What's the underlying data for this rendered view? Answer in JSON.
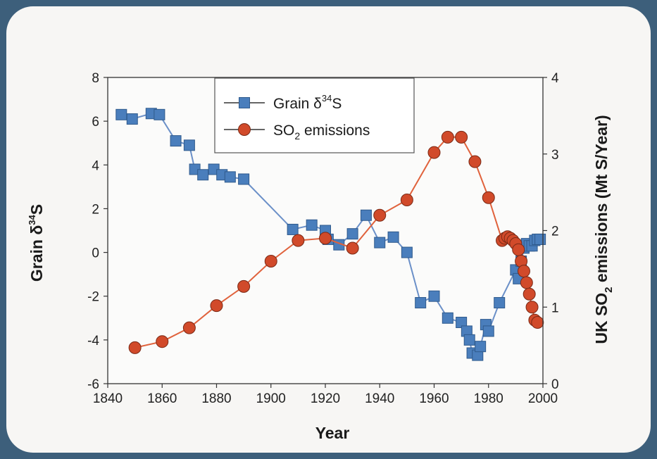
{
  "chart_data": {
    "type": "line",
    "xlabel": "Year",
    "ylabel_left": {
      "text": "Grain δ",
      "sup": "34",
      "tail": "S"
    },
    "ylabel_right": {
      "text": "UK SO",
      "sub": "2",
      "tail": " emissions (Mt S/Year)"
    },
    "xlim": [
      1840,
      2000
    ],
    "ylim_left": [
      -6,
      8
    ],
    "ylim_right": [
      0,
      4
    ],
    "x_ticks": [
      1840,
      1860,
      1880,
      1900,
      1920,
      1940,
      1960,
      1980,
      2000
    ],
    "y_left_ticks": [
      -6,
      -4,
      -2,
      0,
      2,
      4,
      6,
      8
    ],
    "y_right_ticks": [
      0,
      1,
      2,
      3,
      4
    ],
    "legend_position": "top-center",
    "series": [
      {
        "name": "Grain δ34S",
        "legend_label": {
          "text": "Grain δ",
          "sup": "34",
          "tail": "S"
        },
        "axis": "left",
        "marker": "square",
        "color": "#4a7ebc",
        "line_color": "#6b90c8",
        "x": [
          1845,
          1849,
          1856,
          1859,
          1865,
          1870,
          1872,
          1875,
          1879,
          1882,
          1885,
          1890,
          1908,
          1915,
          1920,
          1921,
          1925,
          1930,
          1935,
          1940,
          1945,
          1950,
          1955,
          1960,
          1965,
          1970,
          1972,
          1973,
          1974,
          1976,
          1977,
          1979,
          1980,
          1984,
          1990,
          1991,
          1992,
          1993,
          1994,
          1995,
          1996,
          1997,
          1998,
          1999
        ],
        "y": [
          6.3,
          6.1,
          6.35,
          6.3,
          5.1,
          4.9,
          3.8,
          3.55,
          3.8,
          3.55,
          3.45,
          3.35,
          1.05,
          1.25,
          1.0,
          0.6,
          0.35,
          0.85,
          1.7,
          0.45,
          0.7,
          0.0,
          -2.3,
          -2.0,
          -3.0,
          -3.2,
          -3.6,
          -4.0,
          -4.6,
          -4.7,
          -4.3,
          -3.3,
          -3.6,
          -2.3,
          -0.8,
          -1.2,
          -0.4,
          0.2,
          0.4,
          0.3,
          0.3,
          0.55,
          0.6,
          0.6
        ]
      },
      {
        "name": "SO2 emissions",
        "legend_label": {
          "text": "SO",
          "sub": "2",
          "tail": " emissions"
        },
        "axis": "right",
        "marker": "circle",
        "color": "#d14a2a",
        "line_color": "#e0623c",
        "x": [
          1850,
          1860,
          1870,
          1880,
          1890,
          1900,
          1910,
          1920,
          1930,
          1940,
          1950,
          1960,
          1965,
          1970,
          1975,
          1980,
          1985,
          1986,
          1987,
          1988,
          1989,
          1990,
          1991,
          1992,
          1993,
          1994,
          1995,
          1996,
          1997,
          1998
        ],
        "y": [
          0.47,
          0.55,
          0.73,
          1.02,
          1.27,
          1.6,
          1.87,
          1.9,
          1.77,
          2.2,
          2.4,
          3.02,
          3.22,
          3.22,
          2.9,
          2.43,
          1.87,
          1.9,
          1.92,
          1.9,
          1.87,
          1.83,
          1.75,
          1.6,
          1.47,
          1.32,
          1.17,
          1.0,
          0.83,
          0.8
        ]
      }
    ]
  }
}
